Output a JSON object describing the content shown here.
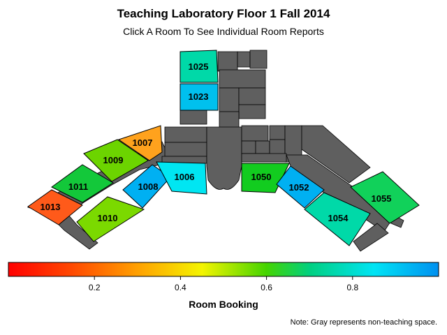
{
  "title": "Teaching Laboratory Floor 1 Fall 2014",
  "subtitle": "Click A Room To See Individual Room Reports",
  "legend": {
    "title": "Room Booking",
    "ticks": [
      "0.2",
      "0.4",
      "0.6",
      "0.8"
    ],
    "tick_values": [
      0.2,
      0.4,
      0.6,
      0.8
    ],
    "range": [
      0,
      1
    ]
  },
  "note": "Note: Gray represents non-teaching space.",
  "colors": {
    "non_teaching": "#5f5f5f"
  },
  "rooms": [
    {
      "label": "1025",
      "color": "#00d9a8"
    },
    {
      "label": "1023",
      "color": "#00c0ee"
    },
    {
      "label": "1007",
      "color": "#ffa21d"
    },
    {
      "label": "1009",
      "color": "#6cd400"
    },
    {
      "label": "1011",
      "color": "#13c83a"
    },
    {
      "label": "1013",
      "color": "#ff5a1a"
    },
    {
      "label": "1008",
      "color": "#00b0f2"
    },
    {
      "label": "1006",
      "color": "#00e6f2"
    },
    {
      "label": "1010",
      "color": "#7bd900"
    },
    {
      "label": "1050",
      "color": "#12cc1f"
    },
    {
      "label": "1052",
      "color": "#00b0f2"
    },
    {
      "label": "1054",
      "color": "#00d9a8"
    },
    {
      "label": "1055",
      "color": "#11d15a"
    }
  ]
}
